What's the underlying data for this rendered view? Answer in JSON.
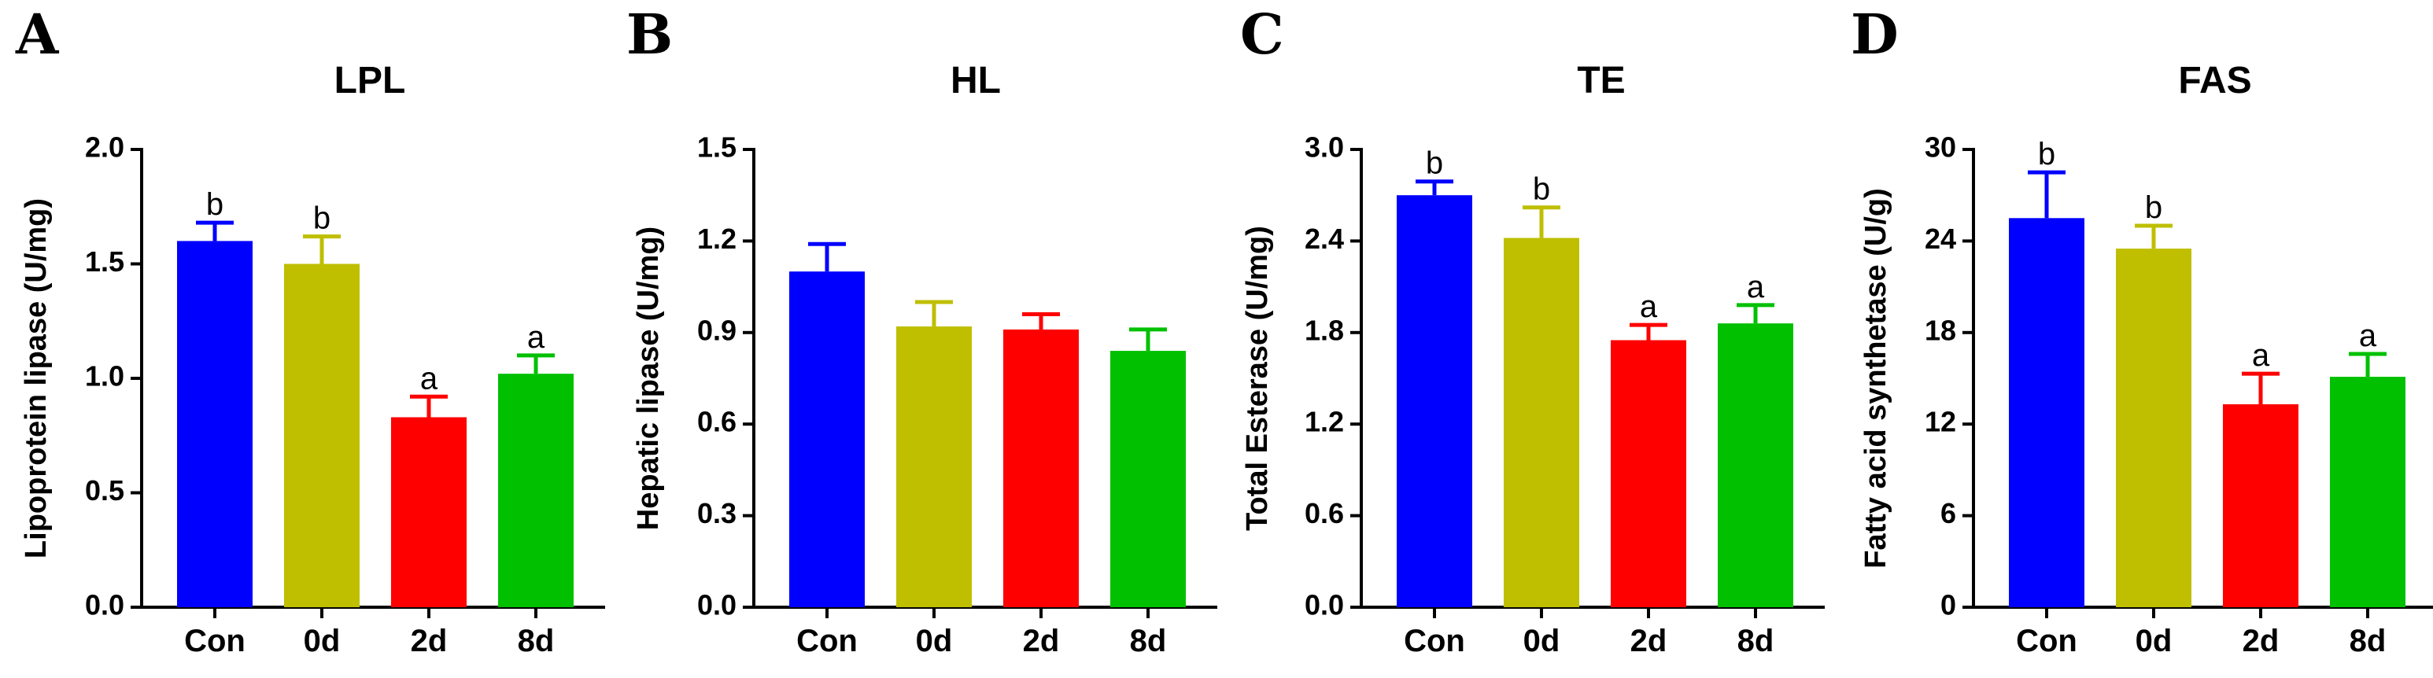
{
  "colors": [
    "#0000FF",
    "#BFBF00",
    "#FF0000",
    "#00C000"
  ],
  "chart_data": [
    {
      "type": "bar",
      "panel": "A",
      "title": "LPL",
      "ylabel": "Lipoprotein lipase (U/mg)",
      "xlabel": "",
      "categories": [
        "Con",
        "0d",
        "2d",
        "8d"
      ],
      "values": [
        1.6,
        1.5,
        0.83,
        1.02
      ],
      "errors": [
        0.08,
        0.12,
        0.09,
        0.08
      ],
      "letters": [
        "b",
        "b",
        "a",
        "a"
      ],
      "ylim": [
        0,
        2.0
      ],
      "yticks": [
        "0.0",
        "0.5",
        "1.0",
        "1.5",
        "2.0"
      ]
    },
    {
      "type": "bar",
      "panel": "B",
      "title": "HL",
      "ylabel": "Hepatic lipase (U/mg)",
      "xlabel": "",
      "categories": [
        "Con",
        "0d",
        "2d",
        "8d"
      ],
      "values": [
        1.1,
        0.92,
        0.91,
        0.84
      ],
      "errors": [
        0.09,
        0.08,
        0.05,
        0.07
      ],
      "letters": [
        "",
        "",
        "",
        ""
      ],
      "ylim": [
        0,
        1.5
      ],
      "yticks": [
        "0.0",
        "0.3",
        "0.6",
        "0.9",
        "1.2",
        "1.5"
      ]
    },
    {
      "type": "bar",
      "panel": "C",
      "title": "TE",
      "ylabel": "Total Esterase (U/mg)",
      "xlabel": "",
      "categories": [
        "Con",
        "0d",
        "2d",
        "8d"
      ],
      "values": [
        2.7,
        2.42,
        1.75,
        1.86
      ],
      "errors": [
        0.09,
        0.2,
        0.1,
        0.12
      ],
      "letters": [
        "b",
        "b",
        "a",
        "a"
      ],
      "ylim": [
        0,
        3.0
      ],
      "yticks": [
        "0.0",
        "0.6",
        "1.2",
        "1.8",
        "2.4",
        "3.0"
      ]
    },
    {
      "type": "bar",
      "panel": "D",
      "title": "FAS",
      "ylabel": "Fatty acid synthetase (U/g)",
      "xlabel": "",
      "categories": [
        "Con",
        "0d",
        "2d",
        "8d"
      ],
      "values": [
        25.5,
        23.5,
        13.3,
        15.1
      ],
      "errors": [
        3.0,
        1.5,
        2.0,
        1.5
      ],
      "letters": [
        "b",
        "b",
        "a",
        "a"
      ],
      "ylim": [
        0,
        30
      ],
      "yticks": [
        "0",
        "6",
        "12",
        "18",
        "24",
        "30"
      ]
    }
  ]
}
